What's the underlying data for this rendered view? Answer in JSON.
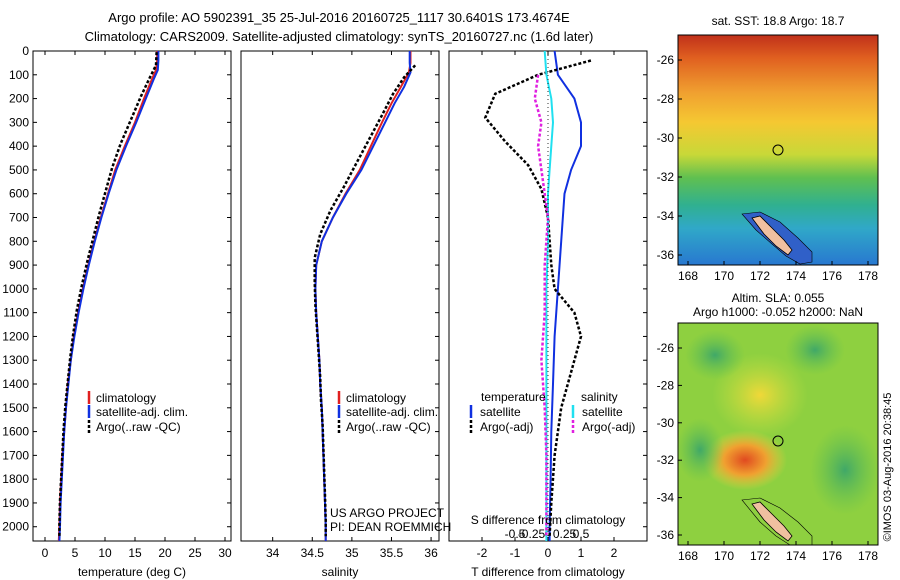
{
  "header": {
    "line1": "Argo profile: AO 5902391_35 25-Jul-2016 20160725_1117 30.6401S 173.4674E",
    "line2": "Climatology: CARS2009. Satellite-adjusted climatology: synTS_20160727.nc (1.6d later)"
  },
  "colors": {
    "climatology": "#e02020",
    "satellite": "#1030e0",
    "argo": "#000000",
    "satellite_s": "#20e0f0",
    "argo_s": "#e020e0"
  },
  "chart_data": [
    {
      "id": "temperature",
      "type": "line",
      "xlabel": "temperature (deg C)",
      "xlim": [
        -2,
        31
      ],
      "xticks": [
        0,
        5,
        10,
        15,
        20,
        25,
        30
      ],
      "ylim": [
        2060,
        0
      ],
      "yticks": [
        0,
        100,
        200,
        300,
        400,
        500,
        600,
        700,
        800,
        900,
        1000,
        1100,
        1200,
        1300,
        1400,
        1500,
        1600,
        1700,
        1800,
        1900,
        2000
      ],
      "legend": [
        "climatology",
        "satellite-adj. clim.",
        "Argo(..raw -QC)"
      ],
      "series": [
        {
          "name": "climatology",
          "color": "#e02020",
          "points": [
            [
              18.7,
              0
            ],
            [
              18.7,
              40
            ],
            [
              18.5,
              80
            ],
            [
              17.8,
              120
            ],
            [
              16.5,
              200
            ],
            [
              15.0,
              300
            ],
            [
              13.3,
              400
            ],
            [
              11.7,
              500
            ],
            [
              10.5,
              600
            ],
            [
              9.3,
              700
            ],
            [
              8.2,
              800
            ],
            [
              7.2,
              900
            ],
            [
              6.3,
              1000
            ],
            [
              5.5,
              1100
            ],
            [
              4.8,
              1200
            ],
            [
              4.3,
              1300
            ],
            [
              3.8,
              1400
            ],
            [
              3.5,
              1500
            ],
            [
              3.2,
              1600
            ],
            [
              2.9,
              1700
            ],
            [
              2.7,
              1800
            ],
            [
              2.5,
              1900
            ],
            [
              2.4,
              2000
            ],
            [
              2.3,
              2060
            ]
          ]
        },
        {
          "name": "satellite-adj. clim.",
          "color": "#1030e0",
          "points": [
            [
              18.9,
              0
            ],
            [
              18.9,
              40
            ],
            [
              18.8,
              80
            ],
            [
              18.1,
              120
            ],
            [
              16.8,
              200
            ],
            [
              15.2,
              300
            ],
            [
              13.5,
              400
            ],
            [
              11.9,
              500
            ],
            [
              10.6,
              600
            ],
            [
              9.4,
              700
            ],
            [
              8.3,
              800
            ],
            [
              7.3,
              900
            ],
            [
              6.4,
              1000
            ],
            [
              5.6,
              1100
            ],
            [
              4.9,
              1200
            ],
            [
              4.3,
              1300
            ],
            [
              3.9,
              1400
            ],
            [
              3.5,
              1500
            ],
            [
              3.2,
              1600
            ],
            [
              3.0,
              1700
            ],
            [
              2.8,
              1800
            ],
            [
              2.6,
              1900
            ],
            [
              2.5,
              2000
            ],
            [
              2.4,
              2060
            ]
          ]
        },
        {
          "name": "Argo(..raw -QC)",
          "color": "#000000",
          "dashed": true,
          "points": [
            [
              18.6,
              5
            ],
            [
              18.5,
              60
            ],
            [
              17.5,
              110
            ],
            [
              16.0,
              190
            ],
            [
              14.3,
              290
            ],
            [
              12.6,
              390
            ],
            [
              11.2,
              490
            ],
            [
              10.1,
              590
            ],
            [
              9.0,
              690
            ],
            [
              8.0,
              790
            ],
            [
              7.0,
              890
            ],
            [
              6.1,
              990
            ],
            [
              5.3,
              1090
            ],
            [
              4.7,
              1190
            ],
            [
              4.2,
              1290
            ],
            [
              3.8,
              1390
            ],
            [
              3.4,
              1490
            ],
            [
              3.1,
              1590
            ],
            [
              2.9,
              1690
            ],
            [
              2.7,
              1790
            ],
            [
              2.5,
              1890
            ],
            [
              2.4,
              1990
            ],
            [
              2.4,
              2040
            ]
          ]
        }
      ]
    },
    {
      "id": "salinity",
      "type": "line",
      "xlabel": "salinity",
      "xlim": [
        33.6,
        36.1
      ],
      "xticks": [
        34,
        34.5,
        35,
        35.5,
        36
      ],
      "ylim": [
        2060,
        0
      ],
      "legend": [
        "climatology",
        "satellite-adj. clim.",
        "Argo(..raw -QC)"
      ],
      "series": [
        {
          "name": "climatology",
          "color": "#e02020",
          "points": [
            [
              35.74,
              0
            ],
            [
              35.74,
              50
            ],
            [
              35.72,
              90
            ],
            [
              35.62,
              150
            ],
            [
              35.5,
              220
            ],
            [
              35.38,
              300
            ],
            [
              35.24,
              400
            ],
            [
              35.1,
              500
            ],
            [
              34.92,
              600
            ],
            [
              34.76,
              700
            ],
            [
              34.62,
              800
            ],
            [
              34.55,
              900
            ],
            [
              34.54,
              1000
            ],
            [
              34.55,
              1100
            ],
            [
              34.57,
              1200
            ],
            [
              34.59,
              1300
            ],
            [
              34.6,
              1400
            ],
            [
              34.62,
              1500
            ],
            [
              34.63,
              1600
            ],
            [
              34.64,
              1700
            ],
            [
              34.65,
              1800
            ],
            [
              34.66,
              1900
            ],
            [
              34.67,
              2000
            ],
            [
              34.67,
              2060
            ]
          ]
        },
        {
          "name": "satellite-adj. clim.",
          "color": "#1030e0",
          "points": [
            [
              35.73,
              0
            ],
            [
              35.73,
              50
            ],
            [
              35.74,
              90
            ],
            [
              35.66,
              150
            ],
            [
              35.54,
              220
            ],
            [
              35.42,
              300
            ],
            [
              35.27,
              400
            ],
            [
              35.12,
              500
            ],
            [
              34.93,
              600
            ],
            [
              34.76,
              700
            ],
            [
              34.62,
              800
            ],
            [
              34.55,
              900
            ],
            [
              34.54,
              1000
            ],
            [
              34.55,
              1100
            ],
            [
              34.57,
              1200
            ],
            [
              34.59,
              1300
            ],
            [
              34.6,
              1400
            ],
            [
              34.62,
              1500
            ],
            [
              34.63,
              1600
            ],
            [
              34.64,
              1700
            ],
            [
              34.65,
              1800
            ],
            [
              34.66,
              1900
            ],
            [
              34.67,
              2000
            ],
            [
              34.67,
              2060
            ]
          ]
        },
        {
          "name": "Argo(..raw -QC)",
          "color": "#000000",
          "dashed": true,
          "points": [
            [
              35.8,
              60
            ],
            [
              35.66,
              110
            ],
            [
              35.52,
              180
            ],
            [
              35.38,
              270
            ],
            [
              35.22,
              370
            ],
            [
              35.06,
              470
            ],
            [
              34.9,
              570
            ],
            [
              34.73,
              670
            ],
            [
              34.6,
              770
            ],
            [
              34.53,
              870
            ],
            [
              34.53,
              970
            ],
            [
              34.54,
              1070
            ],
            [
              34.56,
              1170
            ],
            [
              34.58,
              1270
            ],
            [
              34.6,
              1370
            ],
            [
              34.61,
              1470
            ],
            [
              34.63,
              1570
            ],
            [
              34.64,
              1670
            ],
            [
              34.65,
              1770
            ],
            [
              34.66,
              1870
            ],
            [
              34.67,
              1970
            ],
            [
              34.67,
              2040
            ]
          ]
        }
      ],
      "annotation": [
        "US ARGO PROJECT",
        "PI: DEAN ROEMMICH"
      ]
    },
    {
      "id": "difference",
      "type": "line",
      "xlabel": "T difference from climatology",
      "xlabel2": "S difference from climatology",
      "xlim": [
        -3.0,
        3.0
      ],
      "xticks": [
        -2,
        -1,
        0,
        1,
        2
      ],
      "xticks2": [
        -0.5,
        -0.25,
        0,
        0.25,
        0.5
      ],
      "ylim": [
        2060,
        0
      ],
      "legend_headers": [
        "temperature",
        "salinity"
      ],
      "legend": [
        "satellite",
        "Argo(-adj)",
        "satellite",
        "Argo(-adj)"
      ],
      "series": [
        {
          "name": "satellite",
          "color": "#1030e0",
          "points": [
            [
              0.2,
              0
            ],
            [
              0.3,
              100
            ],
            [
              0.8,
              200
            ],
            [
              1.0,
              300
            ],
            [
              1.0,
              400
            ],
            [
              0.7,
              500
            ],
            [
              0.5,
              600
            ],
            [
              0.4,
              800
            ],
            [
              0.3,
              1000
            ],
            [
              0.2,
              1200
            ],
            [
              0.15,
              1400
            ],
            [
              0.1,
              1600
            ],
            [
              0.08,
              1800
            ],
            [
              0.05,
              2000
            ],
            [
              0.05,
              2060
            ]
          ]
        },
        {
          "name": "Argo(-adj)",
          "color": "#000000",
          "dashed": true,
          "points": [
            [
              1.3,
              40
            ],
            [
              -0.3,
              100
            ],
            [
              -1.6,
              180
            ],
            [
              -1.9,
              280
            ],
            [
              -1.3,
              380
            ],
            [
              -0.6,
              480
            ],
            [
              -0.2,
              580
            ],
            [
              0.0,
              700
            ],
            [
              0.1,
              900
            ],
            [
              0.2,
              1000
            ],
            [
              0.8,
              1100
            ],
            [
              1.0,
              1200
            ],
            [
              0.8,
              1300
            ],
            [
              0.6,
              1400
            ],
            [
              0.4,
              1500
            ],
            [
              0.2,
              1700
            ],
            [
              0.1,
              1900
            ],
            [
              0.05,
              2040
            ]
          ]
        },
        {
          "name": "satellite",
          "color": "#20e0f0",
          "points": [
            [
              -0.1,
              0
            ],
            [
              -0.05,
              100
            ],
            [
              0.1,
              200
            ],
            [
              0.15,
              300
            ],
            [
              0.1,
              400
            ],
            [
              0.05,
              500
            ],
            [
              0.0,
              600
            ],
            [
              0.0,
              800
            ],
            [
              -0.05,
              1000
            ],
            [
              -0.05,
              1400
            ],
            [
              -0.05,
              1800
            ],
            [
              -0.05,
              2060
            ]
          ]
        },
        {
          "name": "Argo(-adj)",
          "color": "#e020e0",
          "dashed": true,
          "points": [
            [
              -0.3,
              100
            ],
            [
              -0.4,
              200
            ],
            [
              -0.2,
              300
            ],
            [
              -0.3,
              400
            ],
            [
              -0.2,
              500
            ],
            [
              -0.1,
              600
            ],
            [
              0.0,
              700
            ],
            [
              -0.1,
              900
            ],
            [
              -0.1,
              1100
            ],
            [
              -0.2,
              1300
            ],
            [
              -0.1,
              1500
            ],
            [
              -0.05,
              1700
            ],
            [
              -0.05,
              1900
            ],
            [
              -0.05,
              2040
            ]
          ]
        }
      ]
    }
  ],
  "maps": {
    "sst": {
      "title": "sat. SST: 18.8 Argo: 18.7",
      "yticks": [
        "-26",
        "-28",
        "-30",
        "-32",
        "-34",
        "-36"
      ],
      "xticks": [
        "168",
        "170",
        "172",
        "174",
        "176",
        "178"
      ]
    },
    "sla": {
      "title1": "Altim. SLA: 0.055",
      "title2": "Argo h1000: -0.052 h2000: NaN",
      "yticks": [
        "-26",
        "-28",
        "-30",
        "-32",
        "-34",
        "-36"
      ],
      "xticks": [
        "168",
        "170",
        "172",
        "174",
        "176",
        "178"
      ]
    }
  },
  "footer": {
    "credit": "©IMOS 03-Aug-2016 20:38:45"
  }
}
